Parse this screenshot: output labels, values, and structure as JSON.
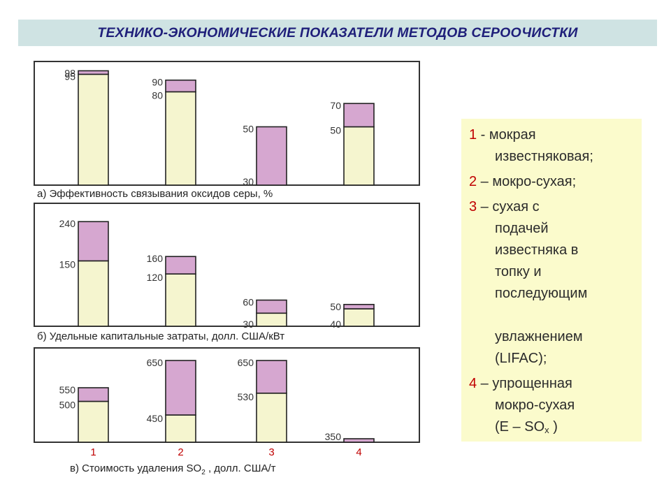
{
  "title": "ТЕХНИКО-ЭКОНОМИЧЕСКИЕ ПОКАЗАТЕЛИ МЕТОДОВ СЕРООЧИСТКИ",
  "colors": {
    "title_bg": "#cfe3e3",
    "title_text": "#1f1f7a",
    "bar_base": "#f5f5cf",
    "bar_range": "#d6a7d0",
    "axis_numbers": "#c00000",
    "legend_bg": "#fbfbcc"
  },
  "x_categories": [
    "1",
    "2",
    "3",
    "4"
  ],
  "chart_data": [
    {
      "type": "bar",
      "stacked": "range",
      "caption": "а) Эффективность связывания оксидов серы, %",
      "ymax": 100,
      "categories": [
        "1",
        "2",
        "3",
        "4"
      ],
      "series": [
        {
          "name": "",
          "low": [
            95,
            80,
            30,
            50
          ],
          "high": [
            98,
            90,
            50,
            70
          ]
        }
      ],
      "labels_low": [
        "95",
        "80",
        "30",
        "50"
      ],
      "labels_high": [
        "98",
        "90",
        "50",
        "70"
      ]
    },
    {
      "type": "bar",
      "stacked": "range",
      "caption": "б) Удельные капитальные затраты, долл. США/кВт",
      "ymax": 250,
      "categories": [
        "1",
        "2",
        "3",
        "4"
      ],
      "series": [
        {
          "name": "",
          "low": [
            150,
            120,
            30,
            40
          ],
          "high": [
            240,
            160,
            60,
            50
          ]
        }
      ],
      "labels_low": [
        "150",
        "120",
        "30",
        "40"
      ],
      "labels_high": [
        "240",
        "160",
        "60",
        "50"
      ]
    },
    {
      "type": "bar",
      "stacked": "range",
      "caption_main": "в) Стоимость удаления SO",
      "caption_sub": "2",
      "caption_tail": " , долл. США/т",
      "ymin": 350,
      "ymax": 700,
      "categories": [
        "1",
        "2",
        "3",
        "4"
      ],
      "series": [
        {
          "name": "",
          "low": [
            500,
            450,
            530,
            350
          ],
          "high": [
            550,
            650,
            650,
            356
          ]
        }
      ],
      "labels_low": [
        "500",
        "450",
        "530",
        "350"
      ],
      "labels_high": [
        "550",
        "650",
        "650",
        ""
      ]
    }
  ],
  "legend": [
    {
      "num": "1",
      "sep": " - ",
      "line1": "мокрая",
      "rest": "известняковая;"
    },
    {
      "num": "2",
      "sep": " – ",
      "line1": "мокро-сухая;",
      "rest": ""
    },
    {
      "num": "3",
      "sep": " – ",
      "line1": "сухая с",
      "rest": "подачей\nизвестняка  в\nтопку и\nпоследующим\n\nувлажнением\n(LIFAC);"
    },
    {
      "num": "4",
      "sep": " – ",
      "line1": "упрощенная",
      "rest": "мокро-сухая",
      "line3_main": "(E – SO",
      "line3_sub": "x",
      "line3_tail": " )"
    }
  ]
}
